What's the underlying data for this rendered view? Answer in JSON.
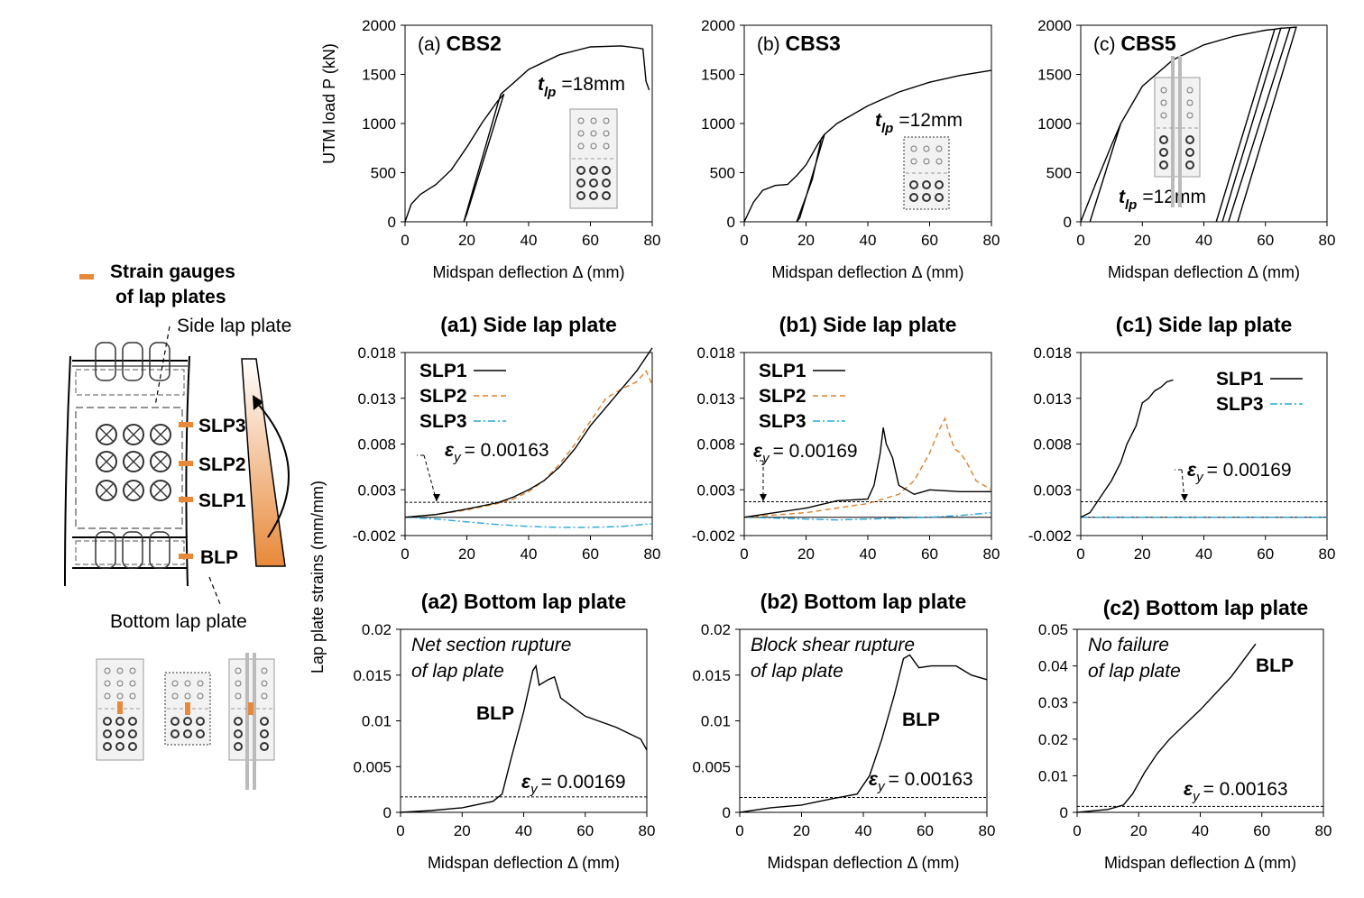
{
  "colors": {
    "line": "#000000",
    "slp2": "#d9822b",
    "slp3": "#2aa7d8",
    "gauge": "#e8893a",
    "plate_fill": "#f2f2f2"
  },
  "left_panel": {
    "legend": [
      "Strain gauges",
      "of lap plates"
    ],
    "side_label": "Side lap plate",
    "bottom_label": "Bottom lap plate",
    "gauges": [
      "SLP3",
      "SLP2",
      "SLP1",
      "BLP"
    ]
  },
  "chart_data": [
    {
      "id": "a",
      "type": "line",
      "title_prefix": "(a)",
      "title": "CBS2",
      "ylabel": "UTM load P (kN)",
      "xlabel": "Midspan deflection Δ (mm)",
      "xlim": [
        0,
        80
      ],
      "ylim": [
        0,
        2000
      ],
      "xticks": [
        0,
        20,
        40,
        60,
        80
      ],
      "yticks": [
        0,
        500,
        1000,
        1500,
        2000
      ],
      "annotation": {
        "sym": "t",
        "sub": "lp",
        "text": "=18mm"
      },
      "series": [
        {
          "name": "load",
          "x": [
            0,
            2,
            5,
            10,
            15,
            20,
            25,
            30,
            32,
            20,
            19,
            25,
            30,
            31,
            35,
            40,
            50,
            60,
            70,
            75,
            77,
            78,
            79
          ],
          "y": [
            0,
            180,
            280,
            380,
            530,
            760,
            1010,
            1230,
            1300,
            80,
            0,
            650,
            1200,
            1300,
            1410,
            1550,
            1700,
            1780,
            1790,
            1770,
            1760,
            1430,
            1340
          ]
        }
      ]
    },
    {
      "id": "b",
      "type": "line",
      "title_prefix": "(b)",
      "title": "CBS3",
      "xlabel": "Midspan deflection Δ (mm)",
      "xlim": [
        0,
        80
      ],
      "ylim": [
        0,
        2000
      ],
      "xticks": [
        0,
        20,
        40,
        60,
        80
      ],
      "yticks": [
        0,
        500,
        1000,
        1500,
        2000
      ],
      "annotation": {
        "sym": "t",
        "sub": "lp",
        "text": "=12mm"
      },
      "series": [
        {
          "name": "load",
          "x": [
            0,
            3,
            6,
            10,
            14,
            17,
            20,
            24,
            26,
            18,
            17,
            22,
            25,
            26,
            30,
            40,
            50,
            60,
            70,
            80
          ],
          "y": [
            0,
            200,
            320,
            370,
            380,
            470,
            580,
            800,
            890,
            40,
            0,
            430,
            850,
            890,
            1000,
            1180,
            1320,
            1420,
            1490,
            1540
          ]
        }
      ]
    },
    {
      "id": "c",
      "type": "line",
      "title_prefix": "(c)",
      "title": "CBS5",
      "xlabel": "Midspan deflection Δ (mm)",
      "xlim": [
        0,
        80
      ],
      "ylim": [
        0,
        2000
      ],
      "xticks": [
        0,
        20,
        40,
        60,
        80
      ],
      "yticks": [
        0,
        500,
        1000,
        1500,
        2000
      ],
      "annotation": {
        "sym": "t",
        "sub": "lp",
        "text": "=12mm"
      },
      "series": [
        {
          "name": "load",
          "x": [
            0,
            5,
            10,
            13,
            3,
            13,
            20,
            30,
            40,
            50,
            60,
            63,
            44,
            63,
            65,
            46,
            65,
            68,
            48,
            68,
            70,
            51,
            70
          ],
          "y": [
            0,
            400,
            780,
            1000,
            0,
            1000,
            1380,
            1650,
            1800,
            1890,
            1950,
            1960,
            0,
            1960,
            1970,
            0,
            1970,
            1975,
            0,
            1975,
            1980,
            0,
            1980
          ]
        }
      ]
    },
    {
      "id": "a1",
      "type": "line",
      "title": "(a1) Side lap plate",
      "ylabel": "Lap plate strains (mm/mm)",
      "xlim": [
        0,
        80
      ],
      "ylim": [
        -0.002,
        0.018
      ],
      "xticks": [
        0,
        20,
        40,
        60,
        80
      ],
      "yticks": [
        -0.002,
        0.003,
        0.008,
        0.013,
        0.018
      ],
      "ytick_labels": [
        "-0.002",
        "0.003",
        "0.008",
        "0.013",
        "0.018"
      ],
      "yield": {
        "value": 0.00163,
        "text": "= 0.00163"
      },
      "series": [
        {
          "name": "SLP3",
          "style": "dashdot",
          "x": [
            0,
            10,
            20,
            30,
            40,
            50,
            60,
            70,
            80
          ],
          "y": [
            0,
            -0.0002,
            -0.0005,
            -0.0008,
            -0.001,
            -0.0011,
            -0.0011,
            -0.001,
            -0.0007
          ]
        },
        {
          "name": "SLP2",
          "style": "dash",
          "x": [
            0,
            10,
            20,
            30,
            35,
            40,
            45,
            50,
            55,
            60,
            65,
            70,
            75,
            78,
            80
          ],
          "y": [
            0,
            0.0003,
            0.0008,
            0.0015,
            0.002,
            0.0028,
            0.004,
            0.0058,
            0.008,
            0.0105,
            0.013,
            0.014,
            0.0148,
            0.016,
            0.0145
          ]
        },
        {
          "name": "SLP1",
          "style": "solid",
          "x": [
            0,
            10,
            20,
            30,
            35,
            40,
            45,
            50,
            55,
            60,
            65,
            70,
            75,
            80
          ],
          "y": [
            0,
            0.0003,
            0.0009,
            0.0016,
            0.0022,
            0.003,
            0.004,
            0.0055,
            0.0075,
            0.01,
            0.012,
            0.014,
            0.016,
            0.0185
          ]
        }
      ]
    },
    {
      "id": "b1",
      "type": "line",
      "title": "(b1) Side lap plate",
      "xlim": [
        0,
        80
      ],
      "ylim": [
        -0.002,
        0.018
      ],
      "xticks": [
        0,
        20,
        40,
        60,
        80
      ],
      "yticks": [
        -0.002,
        0.003,
        0.008,
        0.013,
        0.018
      ],
      "ytick_labels": [
        "-0.002",
        "0.003",
        "0.008",
        "0.013",
        "0.018"
      ],
      "yield": {
        "value": 0.00169,
        "text": "= 0.00169"
      },
      "series": [
        {
          "name": "SLP3",
          "style": "dashdot",
          "x": [
            0,
            10,
            20,
            30,
            40,
            50,
            60,
            70,
            80
          ],
          "y": [
            0,
            -0.0001,
            -0.0002,
            -0.0003,
            -0.0002,
            -0.0001,
            0,
            0.0002,
            0.0005
          ]
        },
        {
          "name": "SLP2",
          "style": "dash",
          "x": [
            0,
            20,
            30,
            40,
            50,
            55,
            60,
            63,
            65,
            66,
            68,
            70,
            72,
            75,
            80
          ],
          "y": [
            0,
            0.0005,
            0.001,
            0.0015,
            0.0025,
            0.004,
            0.007,
            0.0095,
            0.0108,
            0.0095,
            0.0075,
            0.007,
            0.006,
            0.004,
            0.003
          ]
        },
        {
          "name": "SLP1",
          "style": "solid",
          "x": [
            0,
            10,
            20,
            30,
            40,
            42,
            44,
            45,
            46,
            48,
            50,
            55,
            60,
            70,
            80
          ],
          "y": [
            0,
            0.0005,
            0.001,
            0.0018,
            0.002,
            0.0035,
            0.007,
            0.0098,
            0.008,
            0.0065,
            0.0035,
            0.0025,
            0.003,
            0.0028,
            0.0028
          ]
        }
      ]
    },
    {
      "id": "c1",
      "type": "line",
      "title": "(c1) Side lap plate",
      "xlim": [
        0,
        80
      ],
      "ylim": [
        -0.002,
        0.018
      ],
      "xticks": [
        0,
        20,
        40,
        60,
        80
      ],
      "yticks": [
        -0.002,
        0.003,
        0.008,
        0.013,
        0.018
      ],
      "ytick_labels": [
        "-0.002",
        "0.003",
        "0.008",
        "0.013",
        "0.018"
      ],
      "yield": {
        "value": 0.00169,
        "text": "= 0.00169"
      },
      "series": [
        {
          "name": "SLP3",
          "style": "dashdot",
          "x": [
            0,
            10,
            20,
            30,
            40,
            50,
            60,
            70,
            80
          ],
          "y": [
            0,
            0,
            0,
            0,
            0,
            0,
            0,
            0,
            0
          ]
        },
        {
          "name": "SLP1",
          "style": "solid",
          "x": [
            0,
            3,
            6,
            10,
            13,
            15,
            18,
            20,
            22,
            24,
            26,
            28,
            30
          ],
          "y": [
            0,
            0.0005,
            0.002,
            0.004,
            0.006,
            0.008,
            0.01,
            0.0125,
            0.013,
            0.0138,
            0.0142,
            0.0148,
            0.015
          ]
        }
      ]
    },
    {
      "id": "a2",
      "type": "line",
      "title": "(a2) Bottom lap plate",
      "xlabel": "Midspan deflection Δ (mm)",
      "xlim": [
        0,
        80
      ],
      "ylim": [
        0,
        0.02
      ],
      "xticks": [
        0,
        20,
        40,
        60,
        80
      ],
      "yticks": [
        0,
        0.005,
        0.01,
        0.015,
        0.02
      ],
      "ytick_labels": [
        "0",
        "0.005",
        "0.01",
        "0.015",
        "0.02"
      ],
      "yield": {
        "value": 0.00169,
        "text": "= 0.00169"
      },
      "note": [
        "Net section rupture",
        "of lap plate"
      ],
      "series_label": "BLP",
      "series": [
        {
          "name": "BLP",
          "style": "solid",
          "x": [
            0,
            10,
            20,
            30,
            33,
            36,
            40,
            43,
            44,
            45,
            48,
            50,
            52,
            60,
            70,
            78,
            80
          ],
          "y": [
            0,
            0.0002,
            0.0005,
            0.0012,
            0.002,
            0.006,
            0.011,
            0.0155,
            0.016,
            0.0139,
            0.0145,
            0.0148,
            0.0125,
            0.0105,
            0.0093,
            0.008,
            0.0068
          ]
        }
      ]
    },
    {
      "id": "b2",
      "type": "line",
      "title": "(b2) Bottom lap plate",
      "xlabel": "Midspan deflection Δ (mm)",
      "xlim": [
        0,
        80
      ],
      "ylim": [
        0,
        0.02
      ],
      "xticks": [
        0,
        20,
        40,
        60,
        80
      ],
      "yticks": [
        0,
        0.005,
        0.01,
        0.015,
        0.02
      ],
      "ytick_labels": [
        "0",
        "0.005",
        "0.01",
        "0.015",
        "0.02"
      ],
      "yield": {
        "value": 0.00163,
        "text": "= 0.00163"
      },
      "note": [
        "Block shear rupture",
        "of lap plate"
      ],
      "series_label": "BLP",
      "series": [
        {
          "name": "BLP",
          "style": "solid",
          "x": [
            0,
            10,
            20,
            30,
            38,
            42,
            46,
            50,
            53,
            55,
            58,
            62,
            70,
            75,
            80
          ],
          "y": [
            0,
            0.0005,
            0.0008,
            0.0015,
            0.002,
            0.004,
            0.008,
            0.0128,
            0.0168,
            0.0172,
            0.0158,
            0.016,
            0.016,
            0.015,
            0.0145
          ]
        }
      ]
    },
    {
      "id": "c2",
      "type": "line",
      "title": "(c2) Bottom lap plate",
      "xlabel": "Midspan deflection Δ (mm)",
      "xlim": [
        0,
        80
      ],
      "ylim": [
        0,
        0.05
      ],
      "xticks": [
        0,
        20,
        40,
        60,
        80
      ],
      "yticks": [
        0,
        0.01,
        0.02,
        0.03,
        0.04,
        0.05
      ],
      "ytick_labels": [
        "0",
        "0.01",
        "0.02",
        "0.03",
        "0.04",
        "0.05"
      ],
      "yield": {
        "value": 0.00163,
        "text": "= 0.00163"
      },
      "note": [
        "No failure",
        "of lap plate"
      ],
      "series_label": "BLP",
      "series": [
        {
          "name": "BLP",
          "style": "solid",
          "x": [
            0,
            10,
            15,
            18,
            22,
            26,
            30,
            40,
            50,
            58
          ],
          "y": [
            0,
            0.0008,
            0.002,
            0.005,
            0.011,
            0.016,
            0.02,
            0.028,
            0.037,
            0.046
          ]
        }
      ]
    }
  ]
}
